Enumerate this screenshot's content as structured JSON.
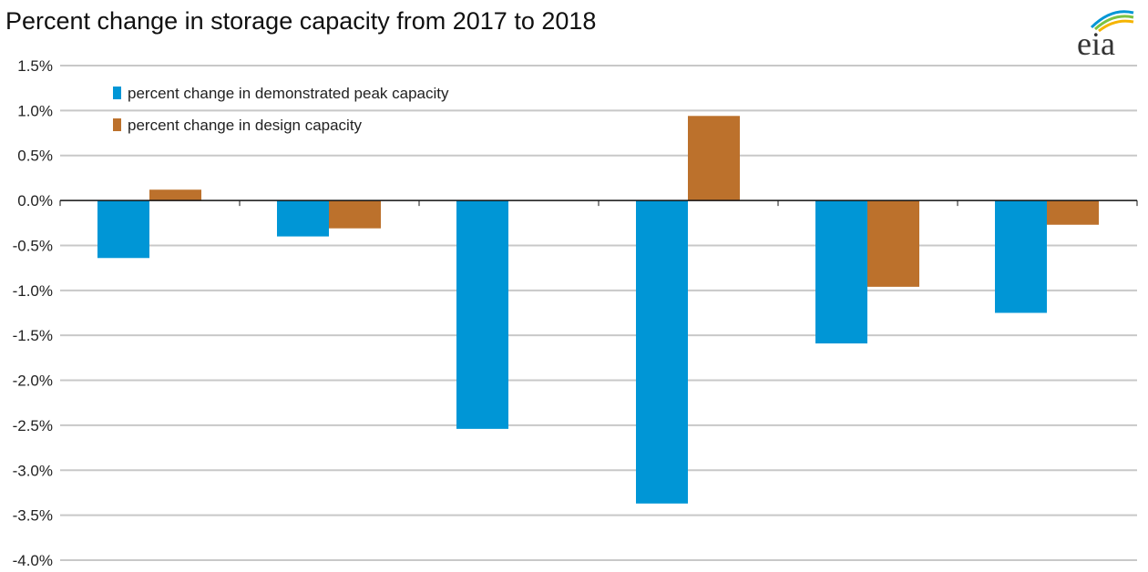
{
  "chart_data": {
    "type": "bar",
    "title": "Percent change in storage capacity from 2017 to 2018",
    "xlabel": "",
    "ylabel": "",
    "categories": [
      "",
      "",
      "",
      "",
      "",
      ""
    ],
    "series": [
      {
        "name": "percent change in demonstrated peak capacity",
        "color": "#0096d6",
        "values": [
          -0.64,
          -0.4,
          -2.54,
          -3.37,
          -1.59,
          -1.25
        ]
      },
      {
        "name": "percent change in design capacity",
        "color": "#bc712c",
        "values": [
          0.12,
          -0.31,
          0.0,
          0.94,
          -0.96,
          -0.27
        ]
      }
    ],
    "ylim": [
      -4.0,
      1.5
    ],
    "yticks": [
      "1.5%",
      "1.0%",
      "0.5%",
      "0.0%",
      "-0.5%",
      "-1.0%",
      "-1.5%",
      "-2.0%",
      "-2.5%",
      "-3.0%",
      "-3.5%",
      "-4.0%"
    ],
    "grid": true,
    "legend_placement": "top-left"
  },
  "logo": {
    "text": "eia"
  }
}
